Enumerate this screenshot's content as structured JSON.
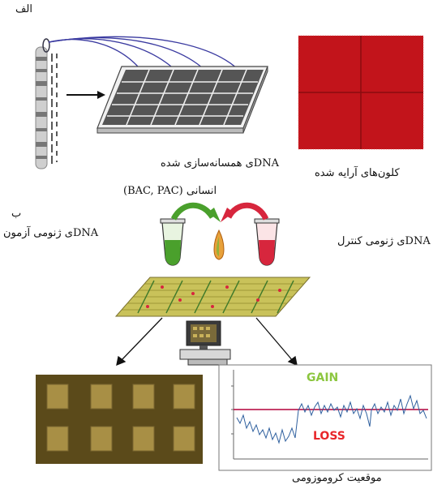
{
  "labels": {
    "part_a": "الف",
    "part_b": "ب",
    "cloned_dna_line1": "DNAی همسانه‌سازی شده",
    "cloned_dna_line2": "انسانی (BAC, PAC)",
    "arrayed_clones": "کلون‌های آرایه شده",
    "test_dna": "DNAی ژنومی آزمون",
    "control_dna": "DNAی ژنومی کنترل",
    "chrom_position": "موقعیت کروموزومی"
  },
  "plot": {
    "gain": "GAIN",
    "loss": "LOSS",
    "gain_color": "#8cc63f",
    "loss_color": "#e8262a",
    "baseline_color": "#b3003b",
    "trace_color": "#2e5f9e"
  },
  "colors": {
    "array_red": "#c2141b",
    "tube_green": "#4aa02c",
    "tube_red": "#d7263d",
    "array_bg": "#c9c25a",
    "scan_bg": "#5b4a1a"
  }
}
